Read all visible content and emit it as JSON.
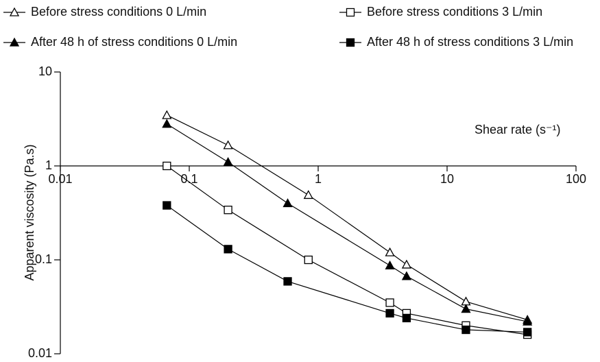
{
  "chart_data": {
    "type": "line",
    "xlabel": "Shear rate (s⁻¹)",
    "ylabel": "Apparent viscosity (Pa.s)",
    "xscale": "log",
    "yscale": "log",
    "xlim": [
      0.01,
      100
    ],
    "ylim": [
      0.01,
      10
    ],
    "xticks": [
      0.01,
      0.1,
      1,
      10,
      100
    ],
    "yticks": [
      0.01,
      0.1,
      1,
      10
    ],
    "x_axis_crosses": 1,
    "series": [
      {
        "name": "Before stress conditions 0 L/min",
        "color": "#000000",
        "marker": "triangle-open",
        "x": [
          0.067,
          0.2,
          0.84,
          3.6,
          4.85,
          14,
          42
        ],
        "values": [
          3.47,
          1.66,
          0.49,
          0.12,
          0.089,
          0.036,
          0.023
        ]
      },
      {
        "name": "Before stress conditions 3 L/min",
        "color": "#000000",
        "marker": "square-open",
        "x": [
          0.067,
          0.2,
          0.84,
          3.6,
          4.85,
          14,
          42
        ],
        "values": [
          1.0,
          0.34,
          0.1,
          0.035,
          0.027,
          0.02,
          0.016
        ]
      },
      {
        "name": "After 48 h of stress conditions 0 L/min",
        "color": "#000000",
        "marker": "triangle-filled",
        "x": [
          0.067,
          0.2,
          0.58,
          3.6,
          4.85,
          14,
          42
        ],
        "values": [
          2.8,
          1.1,
          0.4,
          0.087,
          0.067,
          0.03,
          0.022
        ]
      },
      {
        "name": "After 48 h of stress conditions 3 L/min",
        "color": "#000000",
        "marker": "square-filled",
        "x": [
          0.067,
          0.2,
          0.58,
          3.6,
          4.85,
          14,
          42
        ],
        "values": [
          0.38,
          0.13,
          0.059,
          0.027,
          0.024,
          0.018,
          0.017
        ]
      }
    ]
  }
}
